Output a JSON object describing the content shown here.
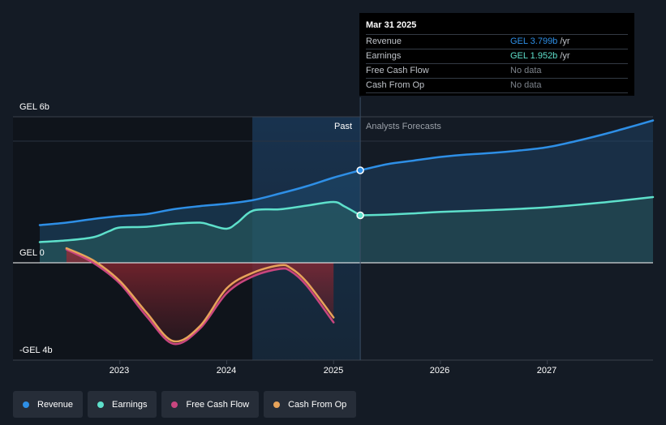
{
  "chart_data": {
    "type": "area",
    "currency": "GEL",
    "y_axis_labels": [
      "GEL 6b",
      "GEL 0",
      "-GEL 4b"
    ],
    "ylim": [
      -4,
      6
    ],
    "x_axis_labels": [
      "2023",
      "2024",
      "2025",
      "2026",
      "2027"
    ],
    "xlim": [
      2022.25,
      2027.99
    ],
    "divider_x": 2025.25,
    "forecast_band_start": 2024.24,
    "past_label": "Past",
    "forecast_label": "Analysts Forecasts",
    "series": [
      {
        "name": "Revenue",
        "color": "#2e8fe6",
        "points": [
          [
            2022.25,
            1.55
          ],
          [
            2022.5,
            1.65
          ],
          [
            2022.75,
            1.8
          ],
          [
            2023.0,
            1.92
          ],
          [
            2023.25,
            2.0
          ],
          [
            2023.5,
            2.2
          ],
          [
            2023.75,
            2.33
          ],
          [
            2024.0,
            2.43
          ],
          [
            2024.25,
            2.58
          ],
          [
            2024.5,
            2.85
          ],
          [
            2024.75,
            3.15
          ],
          [
            2025.0,
            3.5
          ],
          [
            2025.25,
            3.8
          ]
        ]
      },
      {
        "name": "Revenue forecast",
        "color": "#2e8fe6",
        "points": [
          [
            2025.25,
            3.8
          ],
          [
            2025.5,
            4.05
          ],
          [
            2025.75,
            4.2
          ],
          [
            2026.0,
            4.35
          ],
          [
            2026.25,
            4.45
          ],
          [
            2026.5,
            4.52
          ],
          [
            2026.75,
            4.62
          ],
          [
            2027.0,
            4.75
          ],
          [
            2027.25,
            4.98
          ],
          [
            2027.5,
            5.25
          ],
          [
            2027.75,
            5.55
          ],
          [
            2027.99,
            5.85
          ]
        ]
      },
      {
        "name": "Earnings",
        "color": "#5ee0cb",
        "points": [
          [
            2022.25,
            0.85
          ],
          [
            2022.5,
            0.92
          ],
          [
            2022.75,
            1.05
          ],
          [
            2022.9,
            1.3
          ],
          [
            2023.0,
            1.45
          ],
          [
            2023.25,
            1.48
          ],
          [
            2023.5,
            1.6
          ],
          [
            2023.75,
            1.65
          ],
          [
            2023.85,
            1.55
          ],
          [
            2024.0,
            1.4
          ],
          [
            2024.1,
            1.65
          ],
          [
            2024.25,
            2.15
          ],
          [
            2024.5,
            2.2
          ],
          [
            2024.75,
            2.35
          ],
          [
            2025.0,
            2.5
          ],
          [
            2025.1,
            2.32
          ],
          [
            2025.25,
            1.95
          ]
        ]
      },
      {
        "name": "Earnings forecast",
        "color": "#5ee0cb",
        "points": [
          [
            2025.25,
            1.95
          ],
          [
            2025.5,
            1.98
          ],
          [
            2025.75,
            2.03
          ],
          [
            2026.0,
            2.09
          ],
          [
            2026.5,
            2.17
          ],
          [
            2027.0,
            2.28
          ],
          [
            2027.5,
            2.47
          ],
          [
            2027.99,
            2.7
          ]
        ]
      },
      {
        "name": "Free Cash Flow",
        "color": "#c9467f",
        "points": [
          [
            2022.5,
            0.55
          ],
          [
            2022.75,
            0.0
          ],
          [
            2023.0,
            -0.85
          ],
          [
            2023.25,
            -2.2
          ],
          [
            2023.5,
            -3.33
          ],
          [
            2023.75,
            -2.7
          ],
          [
            2024.0,
            -1.25
          ],
          [
            2024.25,
            -0.55
          ],
          [
            2024.5,
            -0.25
          ],
          [
            2024.6,
            -0.35
          ],
          [
            2024.75,
            -0.95
          ],
          [
            2025.0,
            -2.45
          ]
        ]
      },
      {
        "name": "Cash From Op",
        "color": "#e7a35a",
        "points": [
          [
            2022.5,
            0.6
          ],
          [
            2022.75,
            0.1
          ],
          [
            2023.0,
            -0.75
          ],
          [
            2023.25,
            -2.05
          ],
          [
            2023.5,
            -3.22
          ],
          [
            2023.75,
            -2.6
          ],
          [
            2024.0,
            -1.05
          ],
          [
            2024.25,
            -0.4
          ],
          [
            2024.5,
            -0.1
          ],
          [
            2024.6,
            -0.22
          ],
          [
            2024.75,
            -0.8
          ],
          [
            2025.0,
            -2.25
          ]
        ]
      }
    ],
    "highlight_points": [
      {
        "series": "Revenue",
        "x": 2025.25,
        "y": 3.8,
        "color": "#2e8fe6"
      },
      {
        "series": "Earnings",
        "x": 2025.25,
        "y": 1.95,
        "color": "#5ee0cb"
      }
    ]
  },
  "tooltip": {
    "date": "Mar 31 2025",
    "rows": [
      {
        "name": "Revenue",
        "value": "GEL 3.799b",
        "unit": "/yr",
        "color": "#2e8fe6"
      },
      {
        "name": "Earnings",
        "value": "GEL 1.952b",
        "unit": "/yr",
        "color": "#5ee0cb"
      },
      {
        "name": "Free Cash Flow",
        "value": "No data",
        "unit": "",
        "color": "#7d838b"
      },
      {
        "name": "Cash From Op",
        "value": "No data",
        "unit": "",
        "color": "#7d838b"
      }
    ]
  },
  "legend": [
    {
      "label": "Revenue",
      "color": "#2e8fe6"
    },
    {
      "label": "Earnings",
      "color": "#5ee0cb"
    },
    {
      "label": "Free Cash Flow",
      "color": "#c9467f"
    },
    {
      "label": "Cash From Op",
      "color": "#e7a35a"
    }
  ]
}
